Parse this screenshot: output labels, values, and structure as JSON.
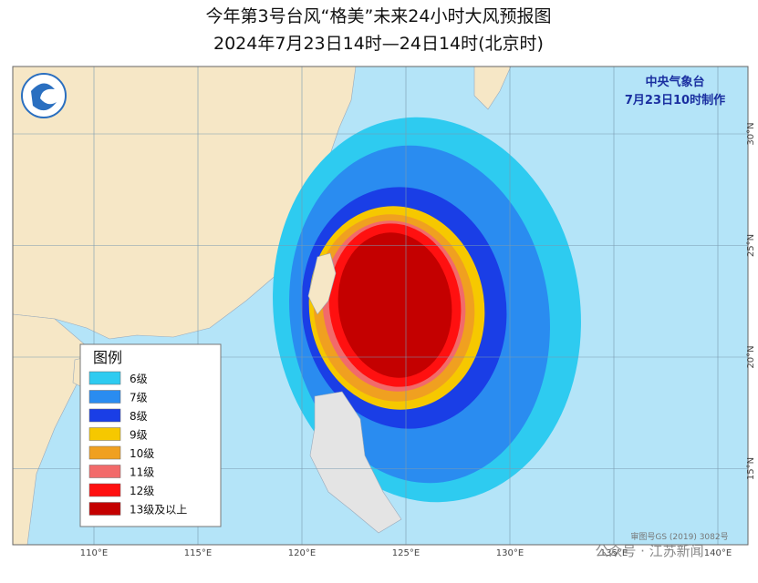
{
  "header": {
    "title": "今年第3号台风“格美”未来24小时大风预报图",
    "subtitle": "2024年7月23日14时—24日14时(北京时)"
  },
  "agency": {
    "name": "中央气象台",
    "made": "7月23日10时制作"
  },
  "legend": {
    "title": "图例",
    "items": [
      {
        "label": "6级",
        "color": "#2ecbf0"
      },
      {
        "label": "7级",
        "color": "#2a8cf0"
      },
      {
        "label": "8级",
        "color": "#1a3ee6"
      },
      {
        "label": "9级",
        "color": "#f6c800"
      },
      {
        "label": "10级",
        "color": "#f0a020"
      },
      {
        "label": "11级",
        "color": "#f26a6a"
      },
      {
        "label": "12级",
        "color": "#ff1010"
      },
      {
        "label": "13级及以上",
        "color": "#c40000"
      }
    ]
  },
  "grid": {
    "longitudes": [
      {
        "value": 110,
        "label": "110°E"
      },
      {
        "value": 115,
        "label": "115°E"
      },
      {
        "value": 120,
        "label": "120°E"
      },
      {
        "value": 125,
        "label": "125°E"
      },
      {
        "value": 130,
        "label": "130°E"
      },
      {
        "value": 135,
        "label": "135°E"
      },
      {
        "value": 140,
        "label": "140°E"
      }
    ],
    "latitudes": [
      {
        "value": 30,
        "label": "30°N"
      },
      {
        "value": 25,
        "label": "25°N"
      },
      {
        "value": 20,
        "label": "20°N"
      },
      {
        "value": 15,
        "label": "15°N"
      }
    ]
  },
  "footer": {
    "map_number": "审图号GS (2019) 3082号",
    "watermark": "公众号 · 江苏新闻"
  }
}
